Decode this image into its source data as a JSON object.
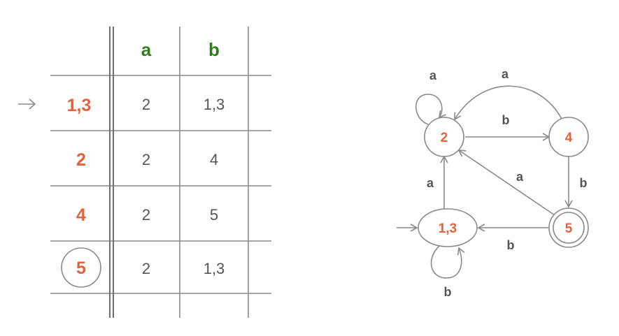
{
  "table": {
    "columns": [
      "a",
      "b"
    ],
    "start_marker": "→",
    "rows": [
      {
        "state": "1,3",
        "a": "2",
        "b": "1,3",
        "start": true,
        "accepting": false
      },
      {
        "state": "2",
        "a": "2",
        "b": "4",
        "start": false,
        "accepting": false
      },
      {
        "state": "4",
        "a": "2",
        "b": "5",
        "start": false,
        "accepting": false
      },
      {
        "state": "5",
        "a": "2",
        "b": "1,3",
        "start": false,
        "accepting": true
      }
    ]
  },
  "automaton": {
    "nodes": [
      {
        "id": "n2",
        "label": "2",
        "accepting": false,
        "start": false
      },
      {
        "id": "n4",
        "label": "4",
        "accepting": false,
        "start": false
      },
      {
        "id": "n13",
        "label": "1,3",
        "accepting": false,
        "start": true
      },
      {
        "id": "n5",
        "label": "5",
        "accepting": true,
        "start": false
      }
    ],
    "edges": [
      {
        "from": "2",
        "to": "2",
        "label": "a"
      },
      {
        "from": "2",
        "to": "4",
        "label": "b"
      },
      {
        "from": "4",
        "to": "2",
        "label": "a"
      },
      {
        "from": "4",
        "to": "5",
        "label": "b"
      },
      {
        "from": "5",
        "to": "2",
        "label": "a"
      },
      {
        "from": "5",
        "to": "1,3",
        "label": "b"
      },
      {
        "from": "1,3",
        "to": "2",
        "label": "a"
      },
      {
        "from": "1,3",
        "to": "1,3",
        "label": "b"
      }
    ]
  },
  "colors": {
    "state_label": "#e4613c",
    "header_label": "#2f7d1e",
    "lines": "#8a8a8a",
    "text": "#555555"
  }
}
